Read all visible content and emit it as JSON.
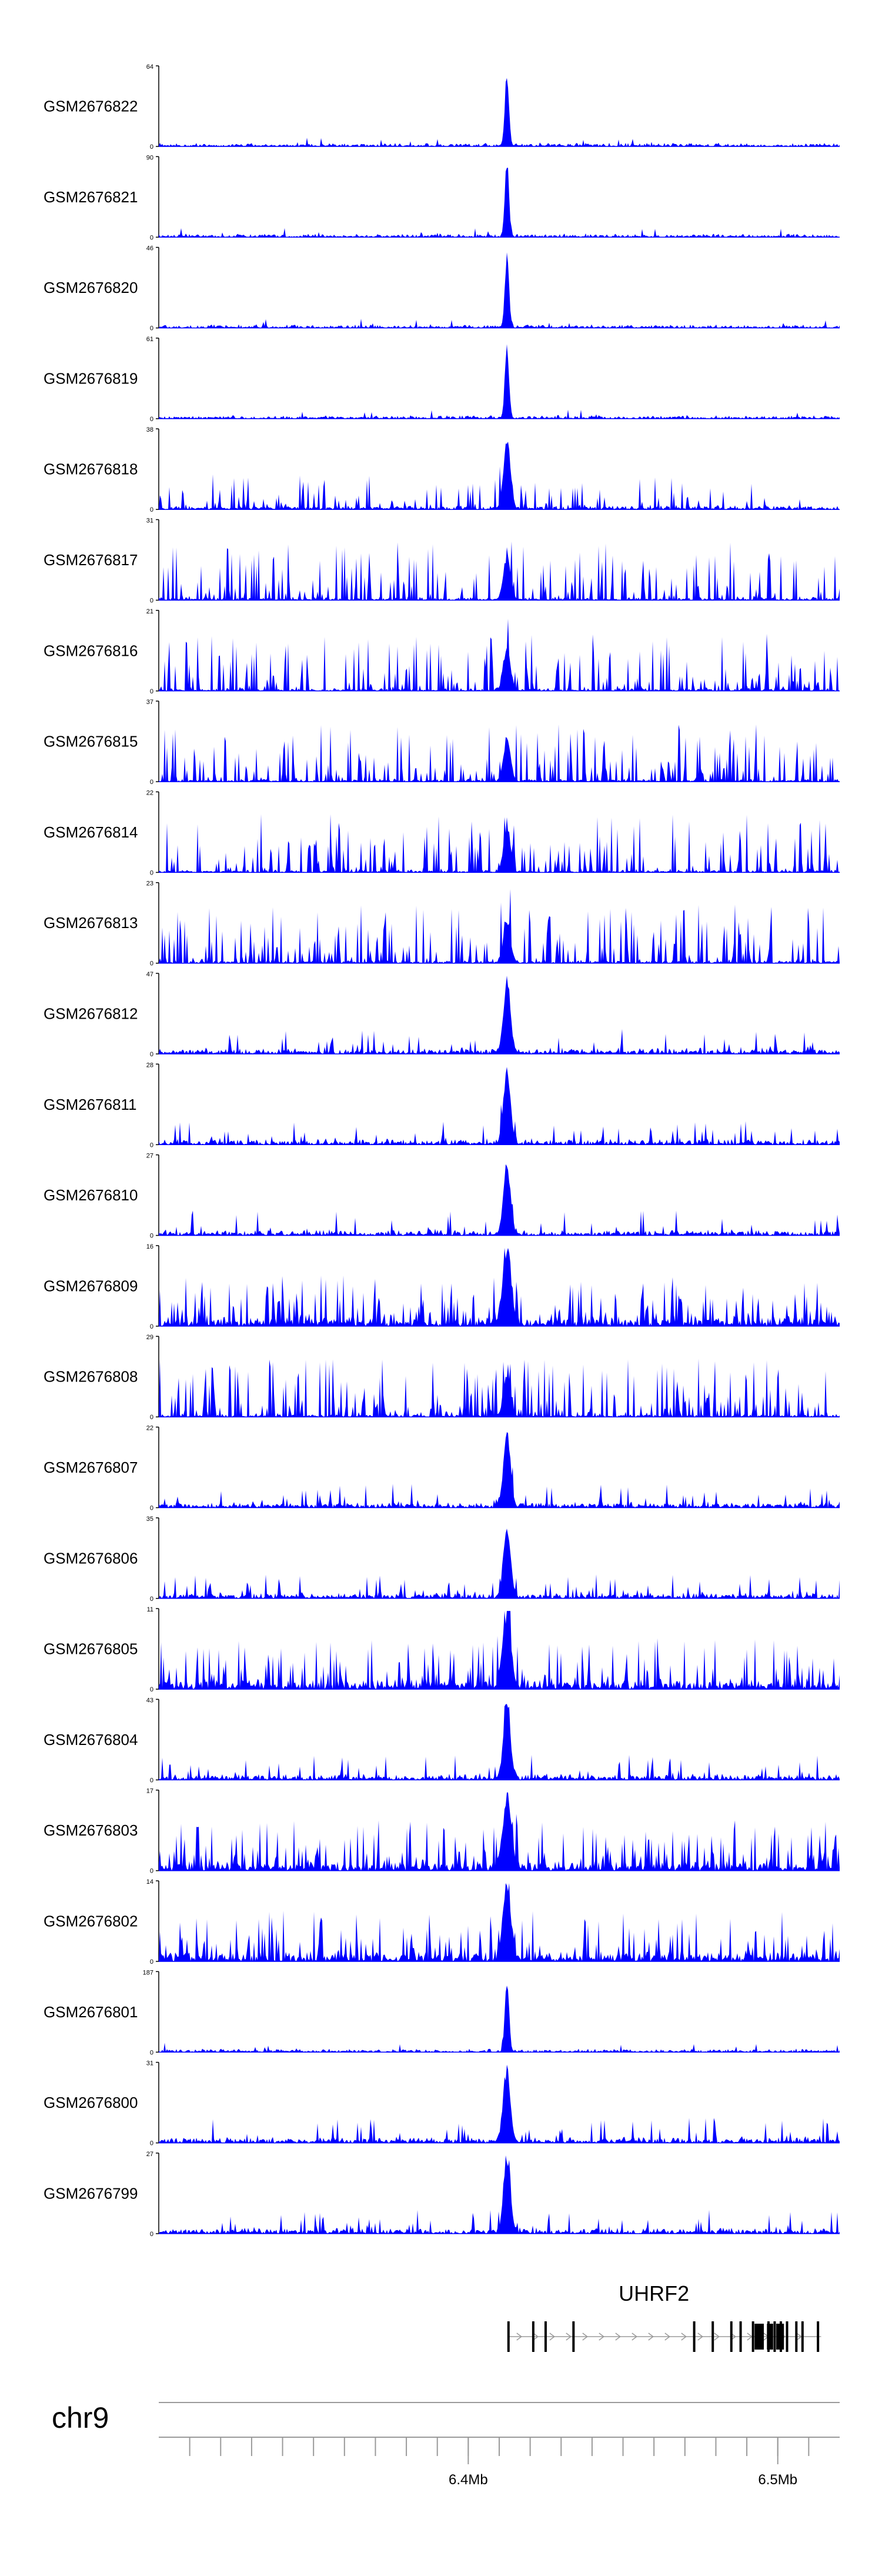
{
  "chart_data": {
    "type": "area",
    "region": {
      "chromosome": "chr9",
      "x_start_mb": 6.3,
      "x_end_mb": 6.52,
      "ticks": [
        {
          "mb": 6.4,
          "label": "6.4Mb"
        },
        {
          "mb": 6.5,
          "label": "6.5Mb"
        }
      ],
      "minor_ticks_mb": [
        6.31,
        6.32,
        6.33,
        6.34,
        6.35,
        6.36,
        6.37,
        6.38,
        6.39,
        6.4,
        6.41,
        6.42,
        6.43,
        6.44,
        6.45,
        6.46,
        6.47,
        6.48,
        6.49,
        6.5,
        6.51
      ]
    },
    "gene": {
      "name": "UHRF2",
      "strand": "+",
      "start_mb": 6.413,
      "end_mb": 6.514,
      "exons_mb": [
        6.413,
        6.421,
        6.425,
        6.434,
        6.473,
        6.479,
        6.485,
        6.488,
        6.492,
        6.497,
        6.499,
        6.501,
        6.503,
        6.506,
        6.508,
        6.513
      ],
      "thick_exons": [
        [
          6.4925,
          6.4955
        ],
        [
          6.4965,
          6.4985
        ],
        [
          6.4995,
          6.502
        ]
      ]
    },
    "peak_center_mb": 6.4125,
    "tracks": [
      {
        "name": "GSM2676822",
        "ymin": 0,
        "ymax": 64,
        "profile": "sharp",
        "seed": 11
      },
      {
        "name": "GSM2676821",
        "ymin": 0,
        "ymax": 90,
        "profile": "sharp",
        "seed": 12
      },
      {
        "name": "GSM2676820",
        "ymin": 0,
        "ymax": 46,
        "profile": "sharp",
        "seed": 13
      },
      {
        "name": "GSM2676819",
        "ymin": 0,
        "ymax": 61,
        "profile": "sharp",
        "seed": 14
      },
      {
        "name": "GSM2676818",
        "ymin": 0,
        "ymax": 38,
        "profile": "moderate",
        "seed": 15
      },
      {
        "name": "GSM2676817",
        "ymin": 0,
        "ymax": 31,
        "profile": "broad",
        "seed": 16
      },
      {
        "name": "GSM2676816",
        "ymin": 0,
        "ymax": 21,
        "profile": "broad",
        "seed": 17
      },
      {
        "name": "GSM2676815",
        "ymin": 0,
        "ymax": 37,
        "profile": "broad",
        "seed": 18
      },
      {
        "name": "GSM2676814",
        "ymin": 0,
        "ymax": 22,
        "profile": "broad",
        "seed": 19
      },
      {
        "name": "GSM2676813",
        "ymin": 0,
        "ymax": 23,
        "profile": "broad",
        "seed": 20
      },
      {
        "name": "GSM2676812",
        "ymin": 0,
        "ymax": 47,
        "profile": "peak",
        "seed": 21
      },
      {
        "name": "GSM2676811",
        "ymin": 0,
        "ymax": 28,
        "profile": "peak",
        "seed": 22
      },
      {
        "name": "GSM2676810",
        "ymin": 0,
        "ymax": 27,
        "profile": "peak",
        "seed": 23
      },
      {
        "name": "GSM2676809",
        "ymin": 0,
        "ymax": 16,
        "profile": "mixed",
        "seed": 24
      },
      {
        "name": "GSM2676808",
        "ymin": 0,
        "ymax": 29,
        "profile": "broad",
        "seed": 25
      },
      {
        "name": "GSM2676807",
        "ymin": 0,
        "ymax": 22,
        "profile": "peak",
        "seed": 26
      },
      {
        "name": "GSM2676806",
        "ymin": 0,
        "ymax": 35,
        "profile": "peak",
        "seed": 27
      },
      {
        "name": "GSM2676805",
        "ymin": 0,
        "ymax": 11,
        "profile": "mixed",
        "seed": 28
      },
      {
        "name": "GSM2676804",
        "ymin": 0,
        "ymax": 43,
        "profile": "peak",
        "seed": 29
      },
      {
        "name": "GSM2676803",
        "ymin": 0,
        "ymax": 17,
        "profile": "mixed",
        "seed": 30
      },
      {
        "name": "GSM2676802",
        "ymin": 0,
        "ymax": 14,
        "profile": "mixed",
        "seed": 31
      },
      {
        "name": "GSM2676801",
        "ymin": 0,
        "ymax": 187,
        "profile": "sharp",
        "seed": 32
      },
      {
        "name": "GSM2676800",
        "ymin": 0,
        "ymax": 31,
        "profile": "peak",
        "seed": 33
      },
      {
        "name": "GSM2676799",
        "ymin": 0,
        "ymax": 27,
        "profile": "peak",
        "seed": 34
      }
    ],
    "colors": {
      "signal": "#0000ff",
      "axis": "#000000",
      "gene": "#000000",
      "intron": "#9a9a9a"
    },
    "grid": false,
    "legend": "none"
  }
}
